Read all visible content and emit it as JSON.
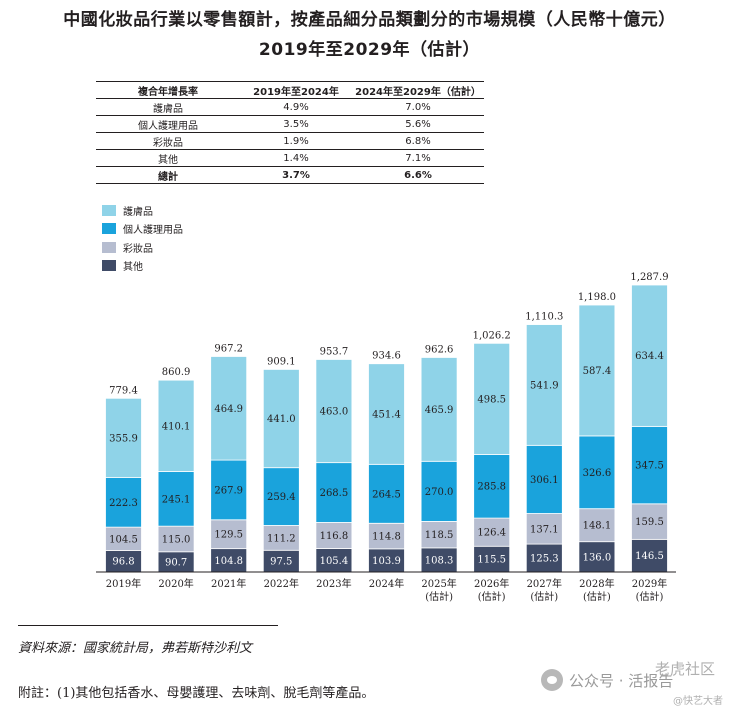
{
  "title_line1": "中國化妝品行業以零售額計，按產品細分品類劃分的市場規模（人民幣十億元）",
  "title_line2": "2019年至2029年（估計）",
  "cagr_table": {
    "header": [
      "複合年增長率",
      "2019年至2024年",
      "2024年至2029年（估計）"
    ],
    "rows": [
      [
        "護膚品",
        "4.9%",
        "7.0%"
      ],
      [
        "個人護理用品",
        "3.5%",
        "5.6%"
      ],
      [
        "彩妝品",
        "1.9%",
        "6.8%"
      ],
      [
        "其他",
        "1.4%",
        "7.1%"
      ]
    ],
    "total": [
      "總計",
      "3.7%",
      "6.6%"
    ]
  },
  "colors": {
    "skincare": "#8fd3e8",
    "personal_care": "#1aa3dc",
    "cosmetics": "#b6bdd0",
    "others": "#3f4b67",
    "axis": "#231f20"
  },
  "chart_data": {
    "type": "bar",
    "stacked": true,
    "categories": [
      "2019年",
      "2020年",
      "2021年",
      "2022年",
      "2023年",
      "2024年",
      "2025年",
      "2026年",
      "2027年",
      "2028年",
      "2029年"
    ],
    "category_notes": [
      "",
      "",
      "",
      "",
      "",
      "",
      "(估計)",
      "(估計)",
      "(估計)",
      "(估計)",
      "(估計)"
    ],
    "series": [
      {
        "name": "其他",
        "color_key": "others",
        "values": [
          96.8,
          90.7,
          104.8,
          97.5,
          105.4,
          103.9,
          108.3,
          115.5,
          125.3,
          136.0,
          146.5
        ]
      },
      {
        "name": "彩妝品",
        "color_key": "cosmetics",
        "values": [
          104.5,
          115.0,
          129.5,
          111.2,
          116.8,
          114.8,
          118.5,
          126.4,
          137.1,
          148.1,
          159.5
        ]
      },
      {
        "name": "個人護理用品",
        "color_key": "personal_care",
        "values": [
          222.3,
          245.1,
          267.9,
          259.4,
          268.5,
          264.5,
          270.0,
          285.8,
          306.1,
          326.6,
          347.5
        ]
      },
      {
        "name": "護膚品",
        "color_key": "skincare",
        "values": [
          355.9,
          410.1,
          464.9,
          441.0,
          463.0,
          451.4,
          465.9,
          498.5,
          541.9,
          587.4,
          634.4
        ]
      }
    ],
    "totals": [
      "779.4",
      "860.9",
      "967.2",
      "909.1",
      "953.7",
      "934.6",
      "962.6",
      "1,026.2",
      "1,110.3",
      "1,198.0",
      "1,287.9"
    ],
    "legend_order": [
      "護膚品",
      "個人護理用品",
      "彩妝品",
      "其他"
    ],
    "legend_placement": "top-left",
    "ylim": [
      0,
      1287.9
    ],
    "grid": false,
    "xlabel": "",
    "ylabel": ""
  },
  "source_note": "資料來源：國家統計局，弗若斯特沙利文",
  "footnote": "附註：(1)其他包括香水、母嬰護理、去味劑、脫毛劑等產品。",
  "watermark": {
    "label": "公众号 · 活报告",
    "right_text": "老虎社区",
    "small_text": "@快艺大者"
  }
}
